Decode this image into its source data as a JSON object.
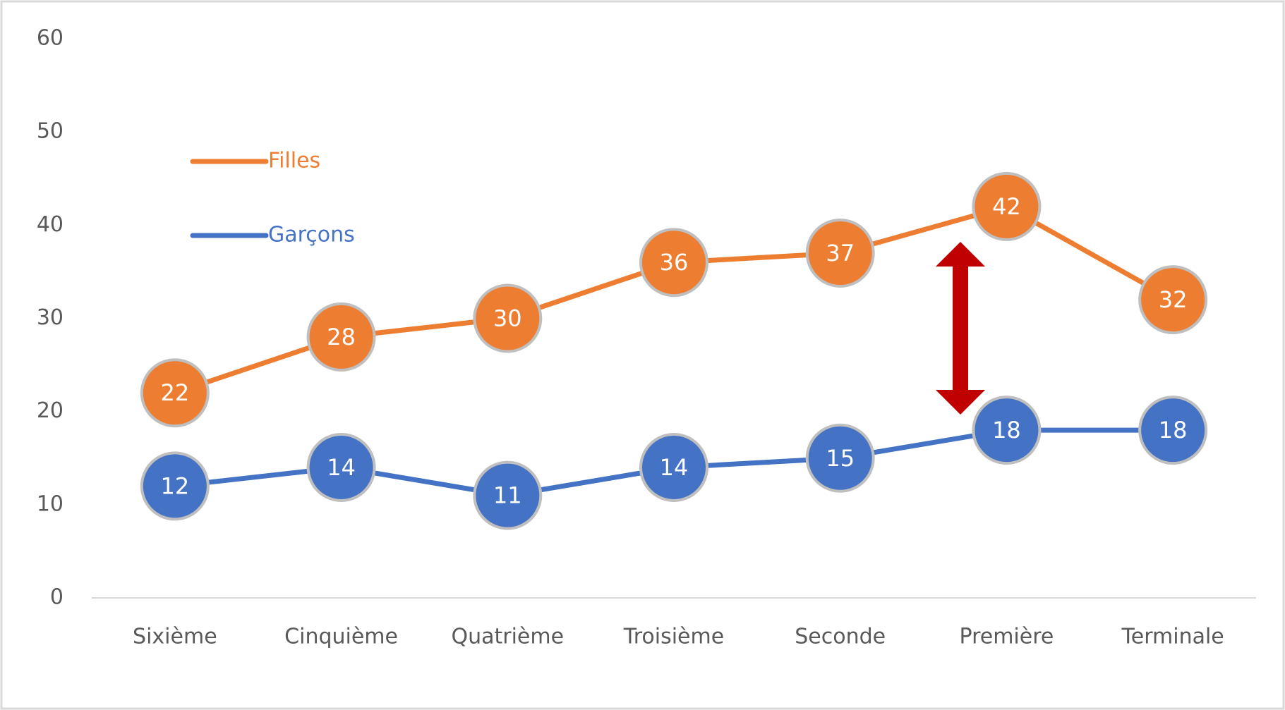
{
  "chart_data": {
    "type": "line",
    "categories": [
      "Sixième",
      "Cinquième",
      "Quatrième",
      "Troisième",
      "Seconde",
      "Première",
      "Terminale"
    ],
    "series": [
      {
        "name": "Filles",
        "color": "#ed7d31",
        "values": [
          22,
          28,
          30,
          36,
          37,
          42,
          32
        ]
      },
      {
        "name": "Garçons",
        "color": "#4472c4",
        "values": [
          12,
          14,
          11,
          14,
          15,
          18,
          18
        ]
      }
    ],
    "ylim": [
      0,
      60
    ],
    "yticks": [
      0,
      10,
      20,
      30,
      40,
      50,
      60
    ],
    "grid": false
  }
}
